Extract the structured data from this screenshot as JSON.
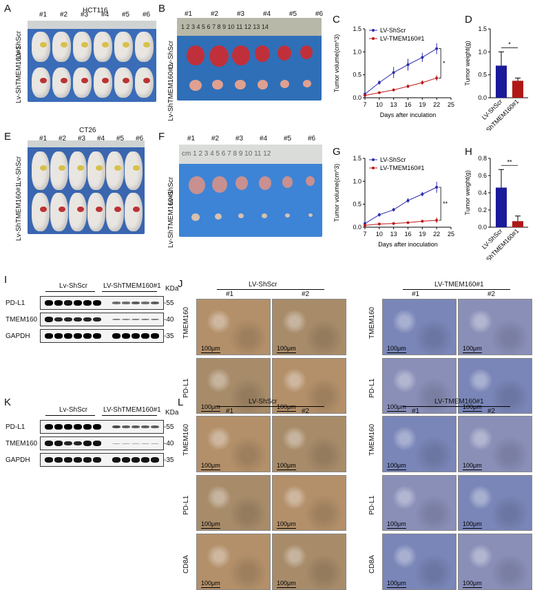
{
  "panels": {
    "A": {
      "letter": "A",
      "title": "HCT116",
      "mice": [
        "#1",
        "#2",
        "#3",
        "#4",
        "#5",
        "#6"
      ],
      "row1": "Lv-ShScr",
      "row2": "Lv-ShTMEM160#1"
    },
    "B": {
      "letter": "B",
      "mice": [
        "#1",
        "#2",
        "#3",
        "#4",
        "#5",
        "#6"
      ],
      "row1": "Lv-ShScr",
      "row2": "Lv-ShTMEM160#1",
      "ruler": [
        "1",
        "2",
        "3",
        "4",
        "5",
        "6",
        "7",
        "8",
        "9",
        "10",
        "11",
        "12",
        "13",
        "14"
      ]
    },
    "C": {
      "letter": "C"
    },
    "D": {
      "letter": "D"
    },
    "E": {
      "letter": "E",
      "title": "CT26",
      "mice": [
        "#1",
        "#2",
        "#3",
        "#4",
        "#5",
        "#6"
      ],
      "row1": "Lv-ShScr",
      "row2": "Lv-ShTMEM160#1"
    },
    "F": {
      "letter": "F",
      "mice": [
        "#1",
        "#2",
        "#3",
        "#4",
        "#5",
        "#6"
      ],
      "row1": "Lv-ShScr",
      "row2": "Lv-ShTMEM160#1",
      "ruler_cm": "cm",
      "ruler": [
        "1",
        "2",
        "3",
        "4",
        "5",
        "6",
        "7",
        "8",
        "9",
        "10",
        "11",
        "12"
      ]
    },
    "G": {
      "letter": "G"
    },
    "H": {
      "letter": "H"
    },
    "I": {
      "letter": "I",
      "groups": [
        "Lv-ShScr",
        "LV-ShTMEM160#1"
      ],
      "kda": "KDa",
      "rows": [
        {
          "label": "PD-L1",
          "marker": "-55"
        },
        {
          "label": "TMEM160",
          "marker": "-40"
        },
        {
          "label": "GAPDH",
          "marker": "-35"
        }
      ]
    },
    "J": {
      "letter": "J",
      "group1": "LV-ShScr",
      "group2": "LV-TMEM160#1",
      "cols": [
        "#1",
        "#2"
      ],
      "rows": [
        "TMEM160",
        "PD-L1"
      ],
      "scale": "100μm"
    },
    "K": {
      "letter": "K",
      "groups": [
        "Lv-ShScr",
        "LV-ShTMEM160#1"
      ],
      "kda": "KDa",
      "rows": [
        {
          "label": "PD-L1",
          "marker": "-55"
        },
        {
          "label": "TMEM160",
          "marker": "-40"
        },
        {
          "label": "GAPDH",
          "marker": "-35"
        }
      ]
    },
    "L": {
      "letter": "L",
      "group1": "LV-ShScr",
      "group2": "LV-TMEM160#1",
      "cols": [
        "#1",
        "#2"
      ],
      "rows": [
        "TMEM160",
        "PD-L1",
        "CD8A"
      ],
      "scale": "100μm"
    }
  },
  "chart_data": [
    {
      "id": "C",
      "type": "line",
      "xlabel": "Days after inculation",
      "ylabel": "Tumor volume(cm^3)",
      "x": [
        7,
        10,
        13,
        16,
        19,
        22
      ],
      "xticks": [
        "7",
        "10",
        "13",
        "16",
        "19",
        "22",
        "25"
      ],
      "xlim": [
        7,
        25
      ],
      "yticks": [
        "0.0",
        "0.5",
        "1.0",
        "1.5"
      ],
      "ylim": [
        0,
        1.5
      ],
      "significance": "*",
      "series": [
        {
          "name": "LV-ShScr",
          "color": "#2b2bb0",
          "values": [
            0.08,
            0.33,
            0.55,
            0.72,
            0.88,
            1.07
          ],
          "err": [
            0.02,
            0.05,
            0.12,
            0.13,
            0.1,
            0.12
          ]
        },
        {
          "name": "LV-TMEM160#1",
          "color": "#c01818",
          "values": [
            0.05,
            0.11,
            0.17,
            0.25,
            0.33,
            0.43
          ],
          "err": [
            0.01,
            0.02,
            0.03,
            0.04,
            0.05,
            0.06
          ]
        }
      ]
    },
    {
      "id": "D",
      "type": "bar",
      "ylabel": "Tumor weight(g)",
      "categories": [
        "LV-ShScr",
        "LV-ShTMEM160#1"
      ],
      "values": [
        0.7,
        0.37
      ],
      "err": [
        0.3,
        0.06
      ],
      "colors": [
        "#1a1a9a",
        "#b01818"
      ],
      "yticks": [
        "0.0",
        "0.5",
        "1.0",
        "1.5"
      ],
      "ylim": [
        0,
        1.5
      ],
      "significance": "*"
    },
    {
      "id": "G",
      "type": "line",
      "xlabel": "Days after inoculation",
      "ylabel": "Tumor volume(cm^3)",
      "x": [
        7,
        10,
        13,
        16,
        19,
        22
      ],
      "xticks": [
        "7",
        "10",
        "13",
        "16",
        "19",
        "22",
        "25"
      ],
      "xlim": [
        7,
        25
      ],
      "yticks": [
        "0.0",
        "0.5",
        "1.0",
        "1.5"
      ],
      "ylim": [
        0,
        1.5
      ],
      "significance": "**",
      "series": [
        {
          "name": "LV-ShScr",
          "color": "#2b2bb0",
          "values": [
            0.08,
            0.27,
            0.38,
            0.58,
            0.72,
            0.87
          ],
          "err": [
            0.02,
            0.04,
            0.04,
            0.05,
            0.05,
            0.12
          ]
        },
        {
          "name": "LV-TMEM160#1",
          "color": "#c01818",
          "values": [
            0.04,
            0.07,
            0.08,
            0.1,
            0.13,
            0.15
          ],
          "err": [
            0.01,
            0.01,
            0.02,
            0.02,
            0.03,
            0.06
          ]
        }
      ]
    },
    {
      "id": "H",
      "type": "bar",
      "ylabel": "Tumor weight(g)",
      "categories": [
        "LV-ShScr",
        "LV-ShTMEM160#1"
      ],
      "values": [
        0.46,
        0.07
      ],
      "err": [
        0.21,
        0.06
      ],
      "colors": [
        "#1a1a9a",
        "#b01818"
      ],
      "yticks": [
        "0.0",
        "0.2",
        "0.4",
        "0.6",
        "0.8"
      ],
      "ylim": [
        0,
        0.8
      ],
      "significance": "**"
    }
  ]
}
